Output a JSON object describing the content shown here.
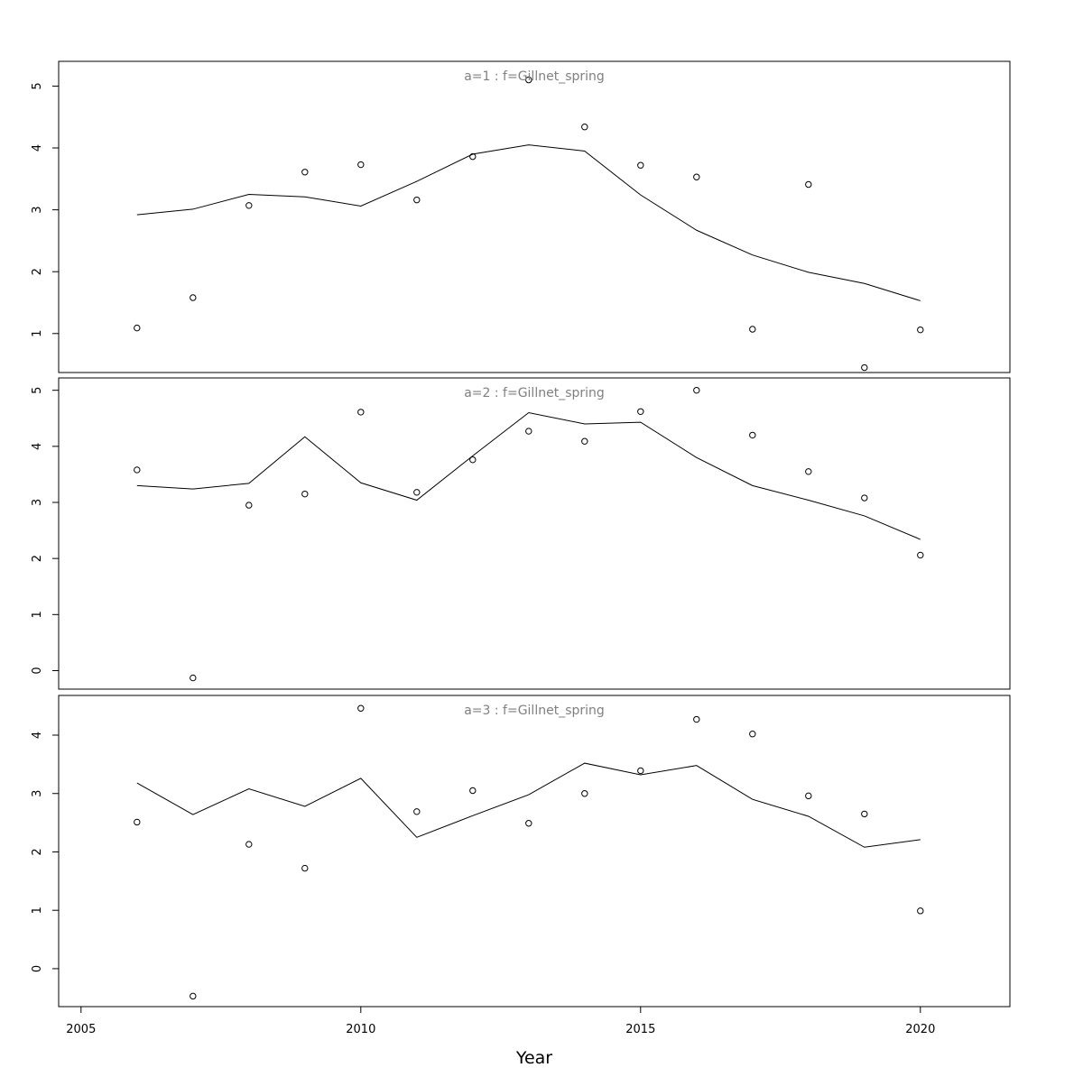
{
  "chart_data": {
    "type": "line",
    "xlabel": "Year",
    "xlim": [
      2004.6,
      2021.6
    ],
    "x_ticks": [
      2005,
      2010,
      2015,
      2020
    ],
    "x": [
      2006,
      2007,
      2008,
      2009,
      2010,
      2011,
      2012,
      2013,
      2014,
      2015,
      2016,
      2017,
      2018,
      2019,
      2020
    ],
    "grid": false,
    "panels": [
      {
        "title": "a=1  :  f=Gillnet_spring",
        "ylim": [
          0.37,
          5.4
        ],
        "y_ticks": [
          1,
          2,
          3,
          4,
          5
        ],
        "observed": [
          1.09,
          1.58,
          3.07,
          3.61,
          3.73,
          3.16,
          3.86,
          5.1,
          4.34,
          3.72,
          3.53,
          1.07,
          3.41,
          0.45,
          1.06
        ],
        "fitted": [
          2.92,
          3.01,
          3.25,
          3.21,
          3.06,
          3.46,
          3.9,
          4.05,
          3.95,
          3.24,
          2.67,
          2.27,
          1.99,
          1.81,
          1.53
        ]
      },
      {
        "title": "a=2  :  f=Gillnet_spring",
        "ylim": [
          -0.33,
          5.22
        ],
        "y_ticks": [
          0,
          1,
          2,
          3,
          4,
          5
        ],
        "observed": [
          3.58,
          -0.13,
          2.95,
          3.15,
          4.61,
          3.18,
          3.76,
          4.27,
          4.09,
          4.62,
          5.0,
          4.2,
          3.55,
          3.08,
          2.06
        ],
        "fitted": [
          3.3,
          3.24,
          3.34,
          4.17,
          3.35,
          3.04,
          3.83,
          4.6,
          4.4,
          4.43,
          3.8,
          3.3,
          3.04,
          2.76,
          2.34
        ]
      },
      {
        "title": "a=3  :  f=Gillnet_spring",
        "ylim": [
          -0.65,
          4.68
        ],
        "y_ticks": [
          0,
          1,
          2,
          3,
          4
        ],
        "observed": [
          2.51,
          -0.47,
          2.13,
          1.72,
          4.46,
          2.69,
          3.05,
          2.49,
          3.0,
          3.39,
          4.27,
          4.02,
          2.96,
          2.65,
          0.99
        ],
        "fitted": [
          3.18,
          2.64,
          3.08,
          2.78,
          3.26,
          2.25,
          2.62,
          2.98,
          3.52,
          3.32,
          3.48,
          2.9,
          2.61,
          2.08,
          2.21
        ]
      }
    ]
  }
}
